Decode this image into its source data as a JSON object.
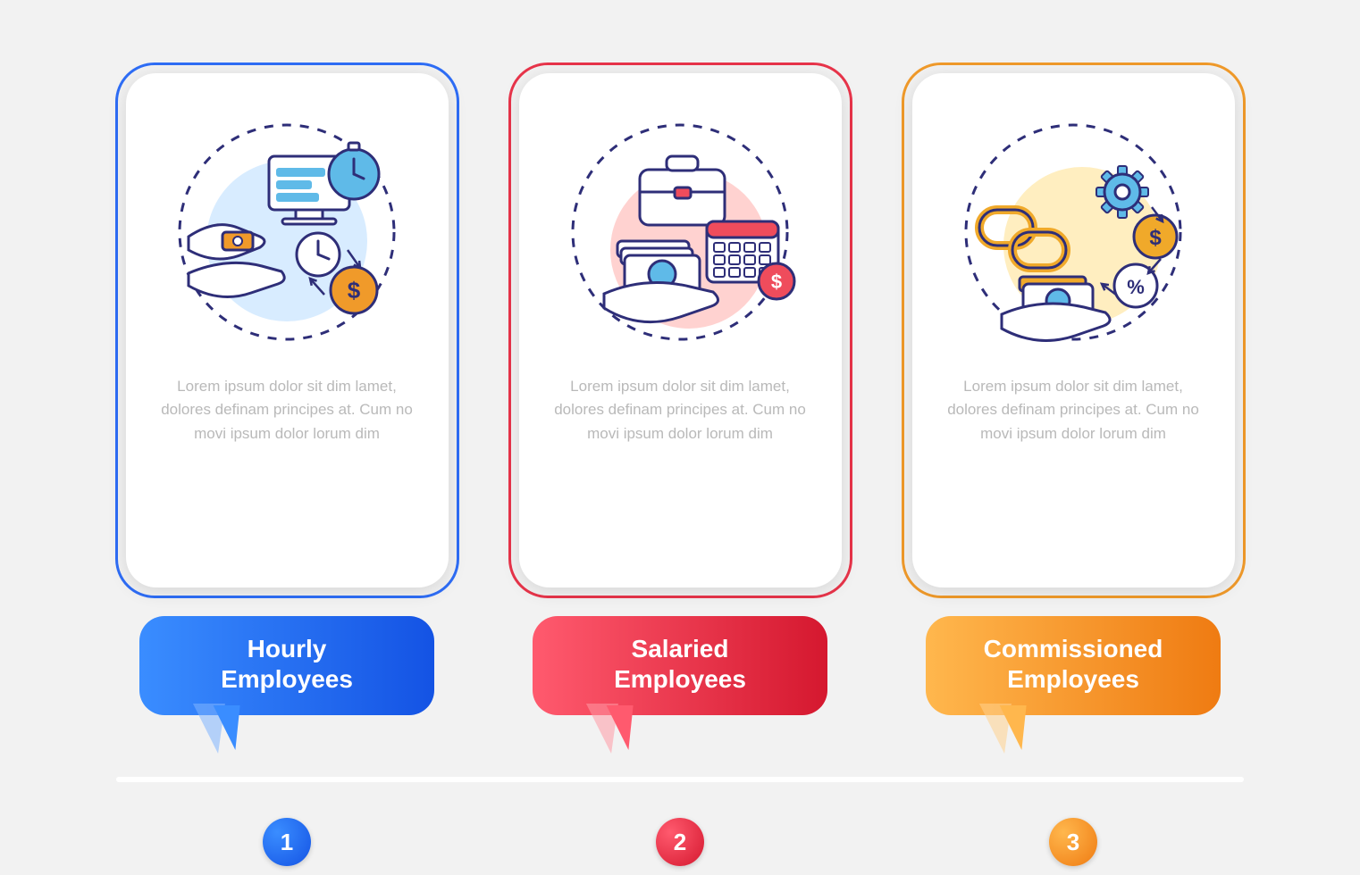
{
  "type": "infographic",
  "layout": "horizontal-cards-3",
  "background_color": "#f2f2f2",
  "card_bg": "#ffffff",
  "card_border_radius": 44,
  "desc_color": "#b9b9b9",
  "desc_fontsize": 17,
  "title_fontsize": 28,
  "title_color": "#ffffff",
  "timeline_color": "#ffffff",
  "number_circle_diameter": 54,
  "icon_stroke_width": 3,
  "icon_line_color": "#2e2e78",
  "dashed_circle_color": "#2e2e78",
  "cards": [
    {
      "number": "1",
      "title": "Hourly\nEmployees",
      "desc": "Lorem ipsum dolor sit dim lamet, dolores definam principes at. Cum no movi ipsum dolor lorum dim",
      "accent": "#2e6df6",
      "gradient_start": "#3a8dff",
      "gradient_end": "#1453e4",
      "gradient_light": "#7fb4ff",
      "icon_bg_circle": "#d8ecff",
      "icon_accent1": "#5fbae8",
      "icon_accent2": "#f09a2a",
      "icon_name": "hourly-pay-icon"
    },
    {
      "number": "2",
      "title": "Salaried\nEmployees",
      "desc": "Lorem ipsum dolor sit dim lamet, dolores definam principes at. Cum no movi ipsum dolor lorum dim",
      "accent": "#e8344a",
      "gradient_start": "#ff5a6e",
      "gradient_end": "#d5182f",
      "gradient_light": "#ff9aa6",
      "icon_bg_circle": "#ffd2d0",
      "icon_accent1": "#5fbae8",
      "icon_accent2": "#ef4c5c",
      "icon_name": "salaried-pay-icon"
    },
    {
      "number": "3",
      "title": "Commissioned\nEmployees",
      "desc": "Lorem ipsum dolor sit dim lamet, dolores definam principes at. Cum no movi ipsum dolor lorum dim",
      "accent": "#f09a2a",
      "gradient_start": "#ffb74d",
      "gradient_end": "#ef7b12",
      "gradient_light": "#ffd28e",
      "icon_bg_circle": "#ffeec0",
      "icon_accent1": "#5fbae8",
      "icon_accent2": "#f0a92a",
      "icon_name": "commission-pay-icon"
    }
  ]
}
